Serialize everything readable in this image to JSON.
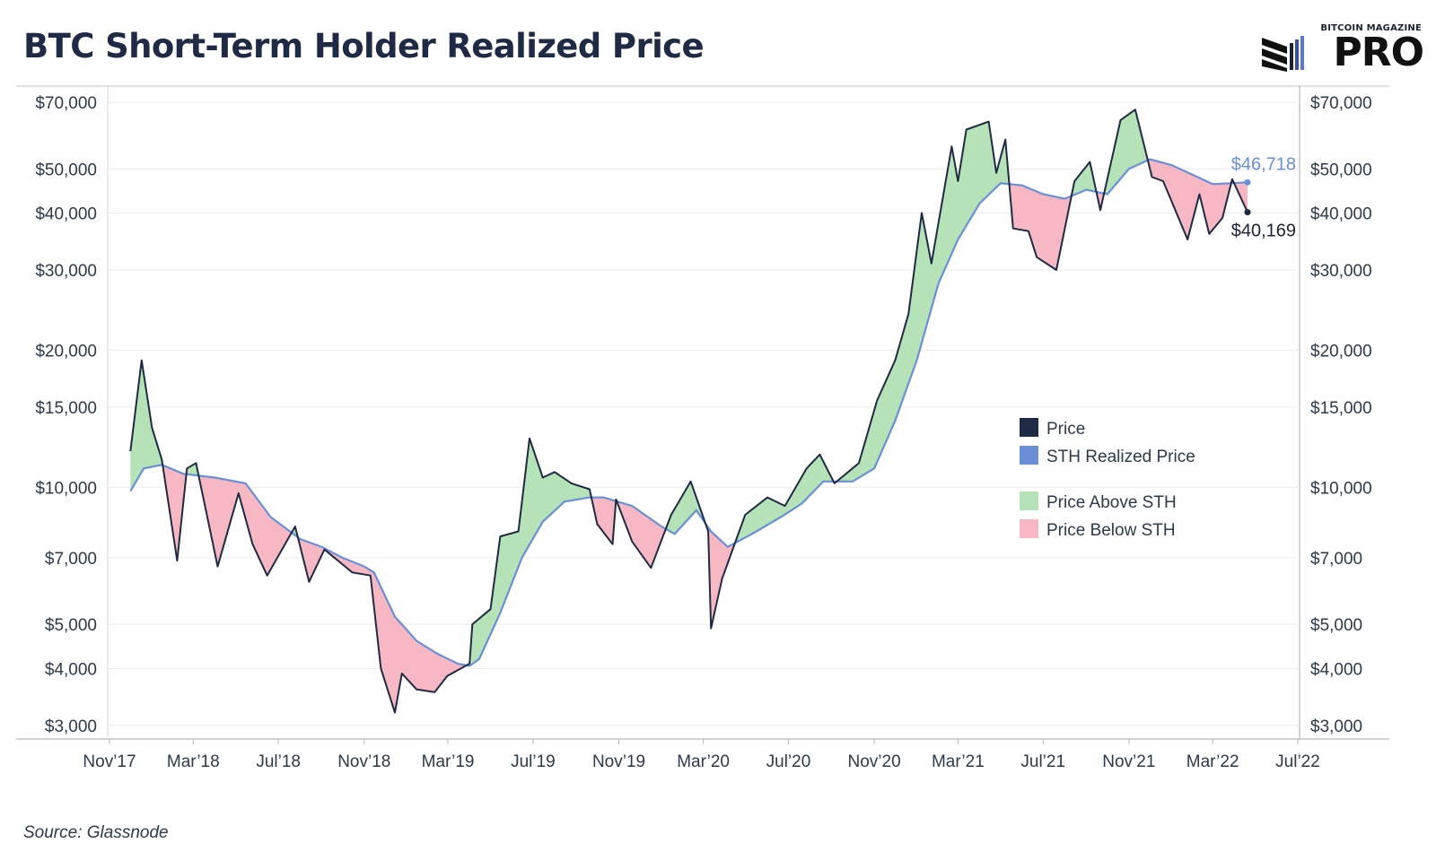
{
  "title": "BTC Short-Term Holder Realized Price",
  "source": "Source: Glassnode",
  "logo": {
    "top": "BITCOIN MAGAZINE",
    "main": "PRO"
  },
  "colors": {
    "price": "#1f2a44",
    "sth": "#6b8fd6",
    "above": "#b5e3b7",
    "below": "#f7b8c3",
    "sth_label": "#6b8fd6",
    "price_label": "#1a2233"
  },
  "chart_data": {
    "type": "line",
    "y_scale": "log",
    "ylim": [
      2800,
      76000
    ],
    "y_ticks": [
      {
        "value": 70000,
        "label": "$70,000"
      },
      {
        "value": 50000,
        "label": "$50,000"
      },
      {
        "value": 40000,
        "label": "$40,000"
      },
      {
        "value": 30000,
        "label": "$30,000"
      },
      {
        "value": 20000,
        "label": "$20,000"
      },
      {
        "value": 15000,
        "label": "$15,000"
      },
      {
        "value": 10000,
        "label": "$10,000"
      },
      {
        "value": 7000,
        "label": "$7,000"
      },
      {
        "value": 5000,
        "label": "$5,000"
      },
      {
        "value": 4000,
        "label": "$4,000"
      },
      {
        "value": 3000,
        "label": "$3,000"
      }
    ],
    "x_ticks": [
      {
        "date": "2017-11-01",
        "label": "Nov’17"
      },
      {
        "date": "2018-03-01",
        "label": "Mar’18"
      },
      {
        "date": "2018-07-01",
        "label": "Jul’18"
      },
      {
        "date": "2018-11-01",
        "label": "Nov’18"
      },
      {
        "date": "2019-03-01",
        "label": "Mar’19"
      },
      {
        "date": "2019-07-01",
        "label": "Jul’19"
      },
      {
        "date": "2019-11-01",
        "label": "Nov’19"
      },
      {
        "date": "2020-03-01",
        "label": "Mar’20"
      },
      {
        "date": "2020-07-01",
        "label": "Jul’20"
      },
      {
        "date": "2020-11-01",
        "label": "Nov’20"
      },
      {
        "date": "2021-03-01",
        "label": "Mar’21"
      },
      {
        "date": "2021-07-01",
        "label": "Jul’21"
      },
      {
        "date": "2021-11-01",
        "label": "Nov’21"
      },
      {
        "date": "2022-03-01",
        "label": "Mar’22"
      },
      {
        "date": "2022-07-01",
        "label": "Jul’22"
      }
    ],
    "xlim": [
      "2017-11-01",
      "2022-07-01"
    ],
    "series": [
      {
        "name": "Price",
        "points": [
          [
            "2017-12-01",
            12000
          ],
          [
            "2017-12-17",
            19000
          ],
          [
            "2018-01-01",
            13500
          ],
          [
            "2018-01-15",
            11500
          ],
          [
            "2018-02-06",
            6900
          ],
          [
            "2018-02-20",
            11000
          ],
          [
            "2018-03-05",
            11300
          ],
          [
            "2018-04-05",
            6700
          ],
          [
            "2018-05-05",
            9700
          ],
          [
            "2018-05-25",
            7500
          ],
          [
            "2018-06-15",
            6400
          ],
          [
            "2018-07-25",
            8200
          ],
          [
            "2018-08-14",
            6200
          ],
          [
            "2018-09-05",
            7300
          ],
          [
            "2018-10-15",
            6500
          ],
          [
            "2018-11-10",
            6400
          ],
          [
            "2018-11-25",
            4000
          ],
          [
            "2018-12-15",
            3200
          ],
          [
            "2018-12-25",
            3900
          ],
          [
            "2019-01-15",
            3600
          ],
          [
            "2019-02-10",
            3550
          ],
          [
            "2019-02-28",
            3850
          ],
          [
            "2019-04-01",
            4100
          ],
          [
            "2019-04-05",
            5000
          ],
          [
            "2019-05-01",
            5400
          ],
          [
            "2019-05-15",
            7800
          ],
          [
            "2019-06-10",
            8000
          ],
          [
            "2019-06-26",
            12800
          ],
          [
            "2019-07-15",
            10500
          ],
          [
            "2019-08-01",
            10800
          ],
          [
            "2019-08-25",
            10200
          ],
          [
            "2019-09-20",
            9900
          ],
          [
            "2019-10-01",
            8300
          ],
          [
            "2019-10-23",
            7500
          ],
          [
            "2019-10-28",
            9400
          ],
          [
            "2019-11-20",
            7600
          ],
          [
            "2019-12-17",
            6650
          ],
          [
            "2020-01-15",
            8700
          ],
          [
            "2020-02-12",
            10300
          ],
          [
            "2020-03-08",
            8000
          ],
          [
            "2020-03-12",
            4900
          ],
          [
            "2020-03-28",
            6300
          ],
          [
            "2020-04-30",
            8700
          ],
          [
            "2020-06-01",
            9500
          ],
          [
            "2020-06-26",
            9100
          ],
          [
            "2020-07-27",
            11000
          ],
          [
            "2020-08-15",
            11800
          ],
          [
            "2020-09-05",
            10200
          ],
          [
            "2020-10-10",
            11300
          ],
          [
            "2020-11-05",
            15500
          ],
          [
            "2020-12-01",
            19000
          ],
          [
            "2020-12-20",
            24000
          ],
          [
            "2021-01-08",
            40000
          ],
          [
            "2021-01-22",
            31000
          ],
          [
            "2021-02-20",
            56000
          ],
          [
            "2021-03-01",
            47000
          ],
          [
            "2021-03-13",
            61000
          ],
          [
            "2021-04-14",
            63500
          ],
          [
            "2021-04-25",
            49000
          ],
          [
            "2021-05-08",
            58000
          ],
          [
            "2021-05-19",
            37000
          ],
          [
            "2021-06-10",
            36500
          ],
          [
            "2021-06-22",
            32000
          ],
          [
            "2021-07-20",
            30000
          ],
          [
            "2021-08-15",
            47000
          ],
          [
            "2021-09-06",
            51800
          ],
          [
            "2021-09-21",
            40600
          ],
          [
            "2021-10-20",
            64000
          ],
          [
            "2021-11-10",
            67500
          ],
          [
            "2021-12-04",
            48000
          ],
          [
            "2021-12-20",
            47000
          ],
          [
            "2022-01-24",
            35000
          ],
          [
            "2022-02-10",
            44000
          ],
          [
            "2022-02-24",
            36000
          ],
          [
            "2022-03-15",
            39000
          ],
          [
            "2022-03-29",
            47500
          ],
          [
            "2022-04-20",
            40169
          ]
        ]
      },
      {
        "name": "STH Realized Price",
        "points": [
          [
            "2017-12-01",
            9800
          ],
          [
            "2017-12-20",
            11000
          ],
          [
            "2018-01-15",
            11200
          ],
          [
            "2018-02-15",
            10700
          ],
          [
            "2018-04-01",
            10500
          ],
          [
            "2018-05-15",
            10200
          ],
          [
            "2018-06-20",
            8600
          ],
          [
            "2018-08-01",
            7700
          ],
          [
            "2018-09-01",
            7400
          ],
          [
            "2018-10-01",
            7000
          ],
          [
            "2018-11-01",
            6700
          ],
          [
            "2018-11-15",
            6500
          ],
          [
            "2018-12-15",
            5200
          ],
          [
            "2019-01-15",
            4600
          ],
          [
            "2019-02-15",
            4300
          ],
          [
            "2019-03-15",
            4100
          ],
          [
            "2019-04-01",
            4050
          ],
          [
            "2019-04-15",
            4200
          ],
          [
            "2019-05-15",
            5300
          ],
          [
            "2019-06-15",
            7000
          ],
          [
            "2019-07-15",
            8400
          ],
          [
            "2019-08-15",
            9300
          ],
          [
            "2019-09-20",
            9500
          ],
          [
            "2019-10-10",
            9500
          ],
          [
            "2019-11-20",
            9100
          ],
          [
            "2020-01-01",
            8200
          ],
          [
            "2020-01-20",
            7900
          ],
          [
            "2020-02-20",
            8900
          ],
          [
            "2020-03-12",
            8000
          ],
          [
            "2020-04-05",
            7400
          ],
          [
            "2020-05-10",
            7900
          ],
          [
            "2020-06-20",
            8600
          ],
          [
            "2020-07-20",
            9200
          ],
          [
            "2020-08-20",
            10300
          ],
          [
            "2020-10-01",
            10300
          ],
          [
            "2020-11-01",
            11000
          ],
          [
            "2020-12-01",
            14000
          ],
          [
            "2021-01-01",
            19000
          ],
          [
            "2021-02-01",
            28000
          ],
          [
            "2021-03-01",
            35000
          ],
          [
            "2021-04-01",
            42000
          ],
          [
            "2021-05-01",
            46500
          ],
          [
            "2021-06-01",
            46000
          ],
          [
            "2021-07-01",
            44000
          ],
          [
            "2021-08-01",
            43000
          ],
          [
            "2021-09-01",
            45000
          ],
          [
            "2021-10-01",
            44000
          ],
          [
            "2021-11-01",
            50000
          ],
          [
            "2021-12-01",
            52500
          ],
          [
            "2022-01-01",
            51000
          ],
          [
            "2022-02-01",
            48500
          ],
          [
            "2022-03-01",
            46300
          ],
          [
            "2022-04-20",
            46718
          ]
        ]
      }
    ],
    "annotations": [
      {
        "label": "$46,718",
        "series": "STH Realized Price",
        "value": 46718
      },
      {
        "label": "$40,169",
        "series": "Price",
        "value": 40169
      }
    ],
    "legend": {
      "placement": "right-middle",
      "entries": [
        {
          "label": "Price",
          "color": "#1f2a44"
        },
        {
          "label": "STH Realized Price",
          "color": "#6b8fd6"
        },
        {
          "label": "Price Above STH",
          "color": "#b5e3b7"
        },
        {
          "label": "Price Below STH",
          "color": "#f7b8c3"
        }
      ]
    },
    "grid": true
  }
}
